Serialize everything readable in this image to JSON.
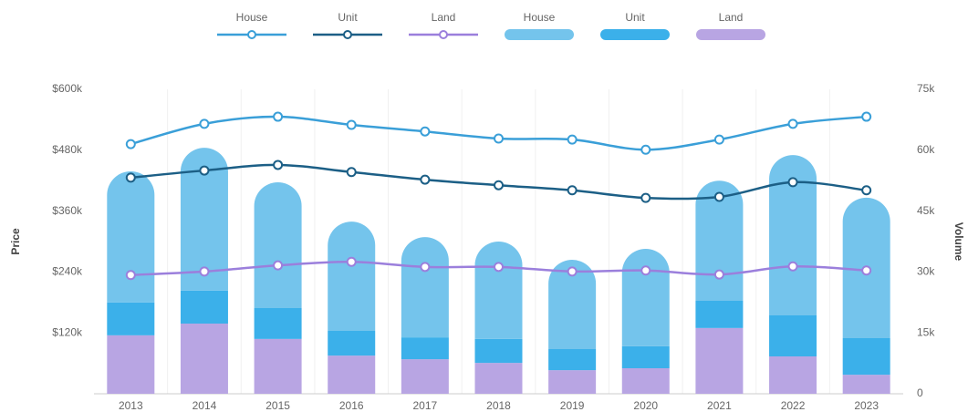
{
  "chart_data": {
    "type": "combo",
    "categories": [
      "2013",
      "2014",
      "2015",
      "2016",
      "2017",
      "2018",
      "2019",
      "2020",
      "2021",
      "2022",
      "2023"
    ],
    "ylabel": "Price",
    "y2label": "Volume",
    "ylim": [
      0,
      600000
    ],
    "yticks": [
      {
        "value": 120000,
        "label": "$120k"
      },
      {
        "value": 240000,
        "label": "$240k"
      },
      {
        "value": 360000,
        "label": "$360k"
      },
      {
        "value": 480000,
        "label": "$480k"
      },
      {
        "value": 600000,
        "label": "$600k"
      }
    ],
    "y2lim": [
      0,
      75000
    ],
    "y2ticks": [
      0,
      {
        "value": 15000,
        "label": "15k"
      },
      {
        "value": 30000,
        "label": "30k"
      },
      {
        "value": 45000,
        "label": "45k"
      },
      {
        "value": 60000,
        "label": "60k"
      },
      {
        "value": 75000,
        "label": "75k"
      }
    ],
    "series": [
      {
        "name": "House",
        "type": "line",
        "color": "#3a9fd8",
        "axis": "y",
        "values": [
          492000,
          532000,
          546000,
          530000,
          517000,
          503000,
          501000,
          481000,
          501000,
          532000,
          546000
        ]
      },
      {
        "name": "Unit",
        "type": "line",
        "color": "#1c5f86",
        "axis": "y",
        "values": [
          426000,
          440000,
          451000,
          437000,
          422000,
          411000,
          401000,
          386000,
          388000,
          417000,
          401000
        ]
      },
      {
        "name": "Land",
        "type": "line",
        "color": "#9b7fdc",
        "axis": "y",
        "values": [
          234000,
          241000,
          253000,
          260000,
          250000,
          250000,
          241000,
          243000,
          235000,
          251000,
          243000
        ]
      },
      {
        "name": "House",
        "type": "bar",
        "color": "#74c4ec",
        "axis": "y2",
        "values": [
          32300,
          35200,
          31000,
          26900,
          24700,
          24000,
          22000,
          24000,
          29600,
          39500,
          34600
        ]
      },
      {
        "name": "Unit",
        "type": "bar",
        "color": "#3bb0ea",
        "axis": "y2",
        "values": [
          8100,
          8100,
          7600,
          6100,
          5400,
          5900,
          5200,
          5400,
          6700,
          10100,
          9000
        ]
      },
      {
        "name": "Land",
        "type": "bar",
        "color": "#b8a5e3",
        "axis": "y2",
        "values": [
          14400,
          17300,
          13500,
          9400,
          8500,
          7600,
          5800,
          6300,
          16200,
          9200,
          4700
        ]
      }
    ]
  }
}
